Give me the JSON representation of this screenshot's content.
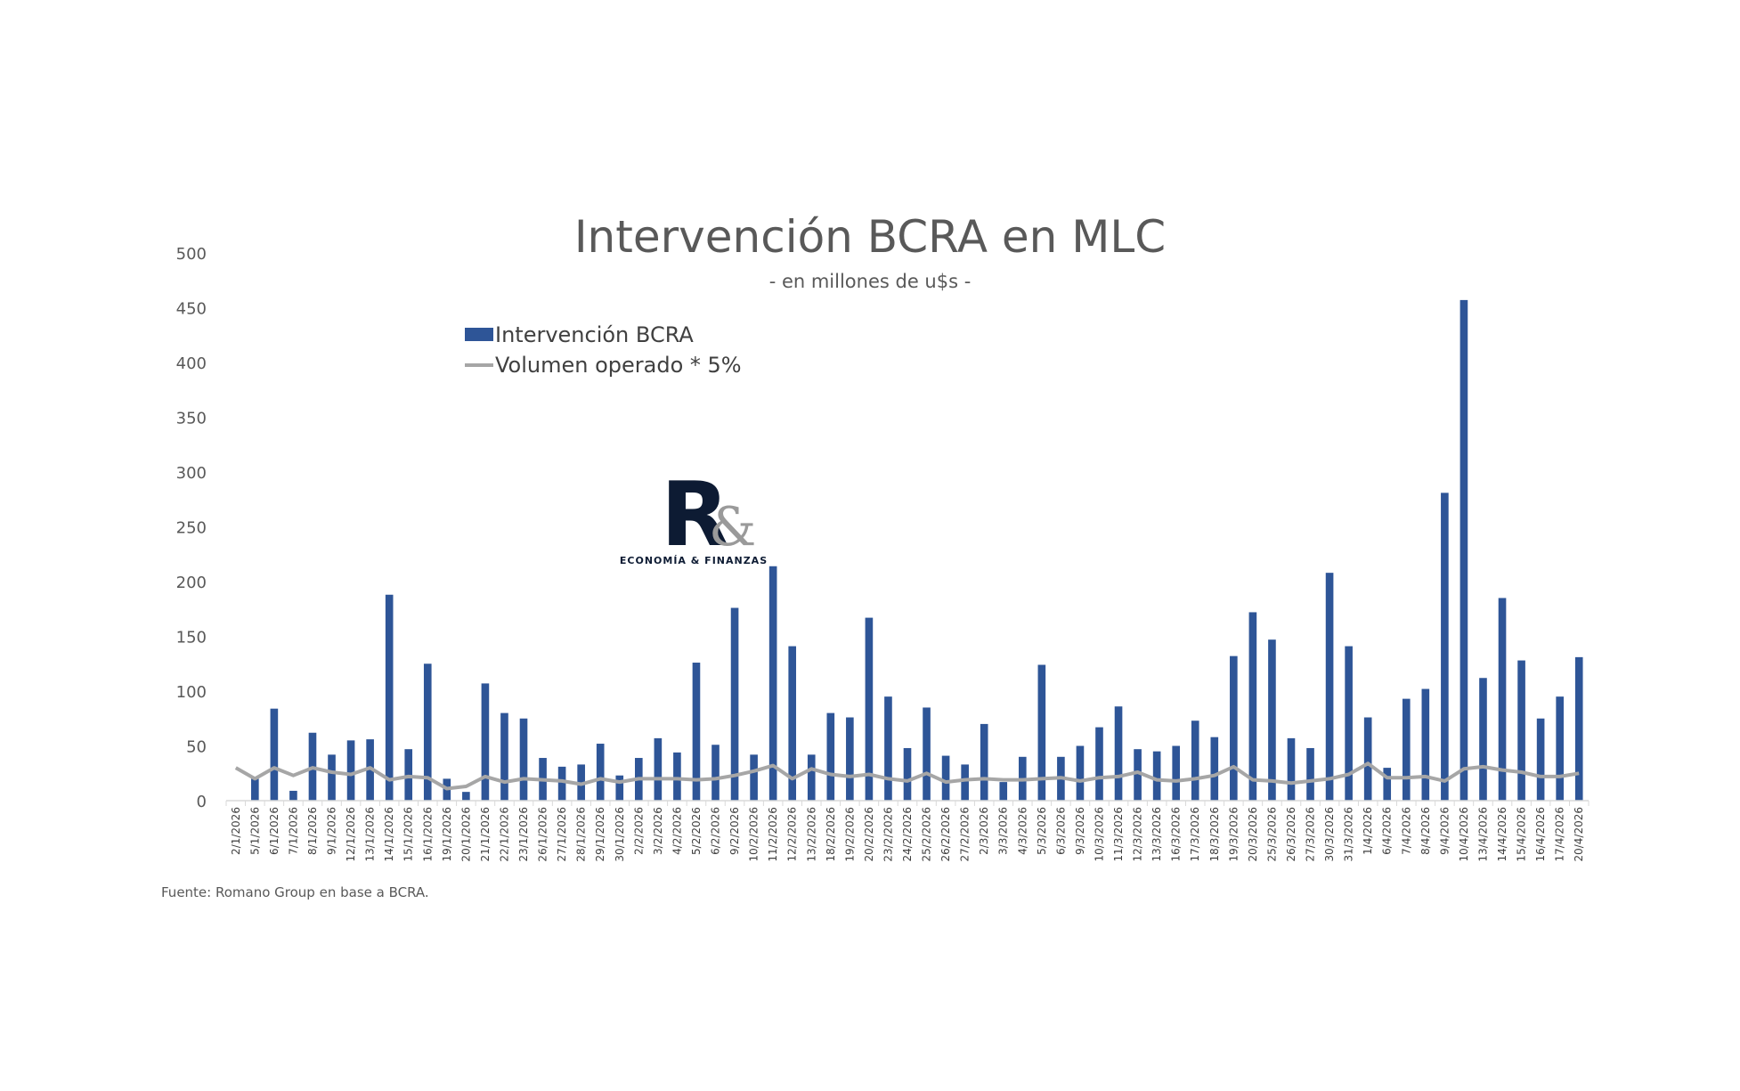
{
  "chart_data": {
    "type": "bar",
    "title": "Intervención BCRA en MLC",
    "subtitle": "- en millones de u$s -",
    "ylim": [
      0,
      500
    ],
    "yticks": [
      0,
      50,
      100,
      150,
      200,
      250,
      300,
      350,
      400,
      450,
      500
    ],
    "legend_position": "top-left",
    "categories": [
      "2/1/2026",
      "5/1/2026",
      "6/1/2026",
      "7/1/2026",
      "8/1/2026",
      "9/1/2026",
      "12/1/2026",
      "13/1/2026",
      "14/1/2026",
      "15/1/2026",
      "16/1/2026",
      "19/1/2026",
      "20/1/2026",
      "21/1/2026",
      "22/1/2026",
      "23/1/2026",
      "26/1/2026",
      "27/1/2026",
      "28/1/2026",
      "29/1/2026",
      "30/1/2026",
      "2/2/2026",
      "3/2/2026",
      "4/2/2026",
      "5/2/2026",
      "6/2/2026",
      "9/2/2026",
      "10/2/2026",
      "11/2/2026",
      "12/2/2026",
      "13/2/2026",
      "18/2/2026",
      "19/2/2026",
      "20/2/2026",
      "23/2/2026",
      "24/2/2026",
      "25/2/2026",
      "26/2/2026",
      "27/2/2026",
      "2/3/2026",
      "3/3/2026",
      "4/3/2026",
      "5/3/2026",
      "6/3/2026",
      "9/3/2026",
      "10/3/2026",
      "11/3/2026",
      "12/3/2026",
      "13/3/2026",
      "16/3/2026",
      "17/3/2026",
      "18/3/2026",
      "19/3/2026",
      "20/3/2026",
      "25/3/2026",
      "26/3/2026",
      "27/3/2026",
      "30/3/2026",
      "31/3/2026",
      "1/4/2026",
      "6/4/2026",
      "7/4/2026",
      "8/4/2026",
      "9/4/2026",
      "10/4/2026",
      "13/4/2026",
      "14/4/2026",
      "15/4/2026",
      "16/4/2026",
      "17/4/2026",
      "20/4/2026"
    ],
    "series": [
      {
        "name": "Intervención BCRA",
        "type": "bar",
        "color": "#2e5597",
        "values": [
          0,
          20,
          84,
          9,
          62,
          42,
          55,
          56,
          188,
          47,
          125,
          20,
          8,
          107,
          80,
          75,
          39,
          31,
          33,
          52,
          23,
          39,
          57,
          44,
          126,
          51,
          176,
          42,
          214,
          141,
          42,
          80,
          76,
          167,
          95,
          48,
          85,
          41,
          33,
          70,
          17,
          40,
          124,
          40,
          50,
          67,
          86,
          47,
          45,
          50,
          73,
          58,
          132,
          172,
          147,
          57,
          48,
          208,
          141,
          76,
          30,
          93,
          102,
          281,
          457,
          112,
          185,
          128,
          75,
          95,
          131
        ]
      },
      {
        "name": "Volumen operado * 5%",
        "type": "line",
        "color": "#a6a6a6",
        "values": [
          30,
          20,
          30,
          23,
          30,
          26,
          24,
          30,
          19,
          22,
          21,
          11,
          13,
          22,
          17,
          20,
          19,
          18,
          15,
          20,
          17,
          20,
          20,
          20,
          19,
          20,
          23,
          27,
          32,
          20,
          29,
          24,
          22,
          24,
          20,
          18,
          25,
          17,
          19,
          20,
          19,
          19,
          20,
          21,
          18,
          21,
          22,
          26,
          19,
          18,
          20,
          23,
          31,
          19,
          18,
          16,
          18,
          20,
          24,
          34,
          21,
          21,
          22,
          18,
          29,
          31,
          28,
          26,
          22,
          22,
          25
        ]
      }
    ]
  },
  "logo": {
    "letter": "R",
    "ampersand": "&",
    "caption": "ECONOMÍA & FINANZAS"
  },
  "source_note": "Fuente: Romano Group en base a BCRA."
}
